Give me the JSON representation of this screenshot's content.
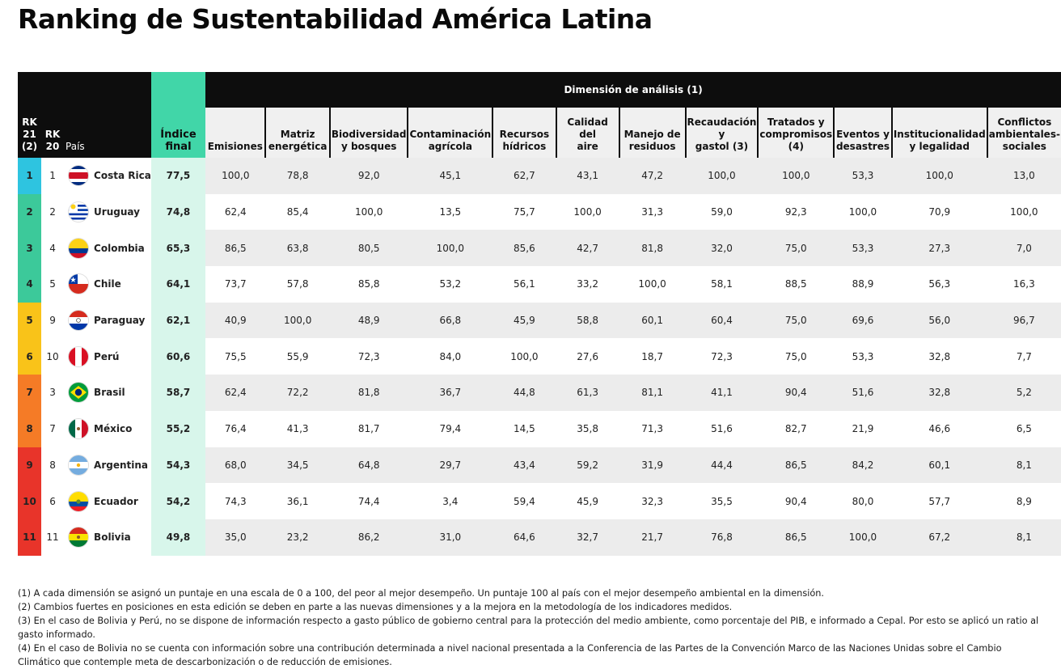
{
  "title": "Ranking de Sustentabilidad América Latina",
  "colors": {
    "header_dark": "#0d0d0d",
    "indice_green": "#41d6a8",
    "indice_cell": "#d8f6eb",
    "band_cyan": "#2ec4e0",
    "band_green": "#3cc99a",
    "band_yellow": "#f9c319",
    "band_orange": "#f57b26",
    "band_red": "#e8342a"
  },
  "chart_data": {
    "type": "table",
    "header": {
      "rk21": [
        "RK",
        "21",
        "(2)"
      ],
      "rk20": [
        "RK",
        "20"
      ],
      "pais": "País",
      "indice_final": "Índice final",
      "dimension": "Dimensión de análisis (1)",
      "dimensions": [
        [
          "Emisiones"
        ],
        [
          "Matriz",
          "energética"
        ],
        [
          "Biodiversidad",
          "y bosques"
        ],
        [
          "Contaminación",
          "agrícola"
        ],
        [
          "Recursos",
          "hídricos"
        ],
        [
          "Calidad del",
          "aire"
        ],
        [
          "Manejo de",
          "residuos"
        ],
        [
          "Recaudación y",
          "gastol (3)"
        ],
        [
          "Tratados y",
          "compromisos",
          "(4)"
        ],
        [
          "Eventos y",
          "desastres"
        ],
        [
          "Institucionalidad",
          "y legalidad"
        ],
        [
          "Conflictos",
          "ambientales-",
          "sociales"
        ]
      ]
    },
    "rows": [
      {
        "rk21": "1",
        "rk20": "1",
        "country": "Costa Rica",
        "flag": "costa-rica",
        "band": "#2ec4e0",
        "indice": "77,5",
        "values": [
          "100,0",
          "78,8",
          "92,0",
          "45,1",
          "62,7",
          "43,1",
          "47,2",
          "100,0",
          "100,0",
          "53,3",
          "100,0",
          "13,0"
        ]
      },
      {
        "rk21": "2",
        "rk20": "2",
        "country": "Uruguay",
        "flag": "uruguay",
        "band": "#3cc99a",
        "indice": "74,8",
        "values": [
          "62,4",
          "85,4",
          "100,0",
          "13,5",
          "75,7",
          "100,0",
          "31,3",
          "59,0",
          "92,3",
          "100,0",
          "70,9",
          "100,0"
        ]
      },
      {
        "rk21": "3",
        "rk20": "4",
        "country": "Colombia",
        "flag": "colombia",
        "band": "#3cc99a",
        "indice": "65,3",
        "values": [
          "86,5",
          "63,8",
          "80,5",
          "100,0",
          "85,6",
          "42,7",
          "81,8",
          "32,0",
          "75,0",
          "53,3",
          "27,3",
          "7,0"
        ]
      },
      {
        "rk21": "4",
        "rk20": "5",
        "country": "Chile",
        "flag": "chile",
        "band": "#3cc99a",
        "indice": "64,1",
        "values": [
          "73,7",
          "57,8",
          "85,8",
          "53,2",
          "56,1",
          "33,2",
          "100,0",
          "58,1",
          "88,5",
          "88,9",
          "56,3",
          "16,3"
        ]
      },
      {
        "rk21": "5",
        "rk20": "9",
        "country": "Paraguay",
        "flag": "paraguay",
        "band": "#f9c319",
        "indice": "62,1",
        "values": [
          "40,9",
          "100,0",
          "48,9",
          "66,8",
          "45,9",
          "58,8",
          "60,1",
          "60,4",
          "75,0",
          "69,6",
          "56,0",
          "96,7"
        ]
      },
      {
        "rk21": "6",
        "rk20": "10",
        "country": "Perú",
        "flag": "peru",
        "band": "#f9c319",
        "indice": "60,6",
        "values": [
          "75,5",
          "55,9",
          "72,3",
          "84,0",
          "100,0",
          "27,6",
          "18,7",
          "72,3",
          "75,0",
          "53,3",
          "32,8",
          "7,7"
        ]
      },
      {
        "rk21": "7",
        "rk20": "3",
        "country": "Brasil",
        "flag": "brasil",
        "band": "#f57b26",
        "indice": "58,7",
        "values": [
          "62,4",
          "72,2",
          "81,8",
          "36,7",
          "44,8",
          "61,3",
          "81,1",
          "41,1",
          "90,4",
          "51,6",
          "32,8",
          "5,2"
        ]
      },
      {
        "rk21": "8",
        "rk20": "7",
        "country": "México",
        "flag": "mexico",
        "band": "#f57b26",
        "indice": "55,2",
        "values": [
          "76,4",
          "41,3",
          "81,7",
          "79,4",
          "14,5",
          "35,8",
          "71,3",
          "51,6",
          "82,7",
          "21,9",
          "46,6",
          "6,5"
        ]
      },
      {
        "rk21": "9",
        "rk20": "8",
        "country": "Argentina",
        "flag": "argentina",
        "band": "#e8342a",
        "indice": "54,3",
        "values": [
          "68,0",
          "34,5",
          "64,8",
          "29,7",
          "43,4",
          "59,2",
          "31,9",
          "44,4",
          "86,5",
          "84,2",
          "60,1",
          "8,1"
        ]
      },
      {
        "rk21": "10",
        "rk20": "6",
        "country": "Ecuador",
        "flag": "ecuador",
        "band": "#e8342a",
        "indice": "54,2",
        "values": [
          "74,3",
          "36,1",
          "74,4",
          "3,4",
          "59,4",
          "45,9",
          "32,3",
          "35,5",
          "90,4",
          "80,0",
          "57,7",
          "8,9"
        ]
      },
      {
        "rk21": "11",
        "rk20": "11",
        "country": "Bolivia",
        "flag": "bolivia",
        "band": "#e8342a",
        "indice": "49,8",
        "values": [
          "35,0",
          "23,2",
          "86,2",
          "31,0",
          "64,6",
          "32,7",
          "21,7",
          "76,8",
          "86,5",
          "100,0",
          "67,2",
          "8,1"
        ]
      }
    ]
  },
  "notes": [
    "(1) A cada dimensión se asignó un puntaje en una escala de 0 a 100, del peor al mejor desempeño. Un puntaje 100 al país con el mejor desempeño ambiental en la dimensión.",
    "(2) Cambios fuertes en posiciones en esta edición se deben en parte a las nuevas dimensiones y a la mejora en la metodología de los indicadores medidos.",
    "(3) En el caso de Bolivia y Perú, no se dispone de información respecto a gasto público de gobierno central para la protección del medio ambiente, como porcentaje del PIB, e informado a Cepal. Por esto se aplicó un ratio al gasto informado.",
    "(4) En el caso de Bolivia no se cuenta con información sobre una contribución determinada a nivel nacional presentada a la Conferencia de las Partes de la Convención Marco de las Naciones Unidas sobre el Cambio Climático que contemple meta de descarbonización o de reducción de emisiones."
  ]
}
